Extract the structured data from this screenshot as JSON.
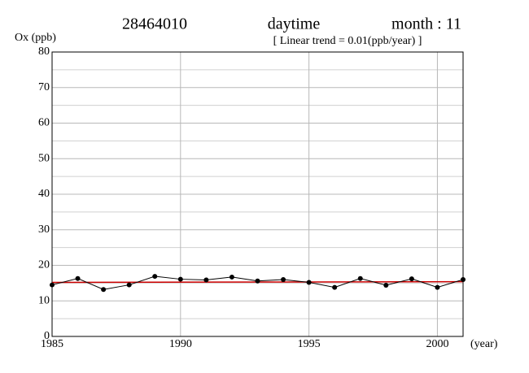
{
  "chart_data": {
    "type": "line",
    "title": "28464010",
    "title_mid": "daytime",
    "title_right": "month : 11",
    "subtitle": "[ Linear trend = 0.01(ppb/year) ]",
    "y_label": "Ox (ppb)",
    "x_label": "(year)",
    "x": [
      1985,
      1986,
      1987,
      1988,
      1989,
      1990,
      1991,
      1992,
      1993,
      1994,
      1995,
      1996,
      1997,
      1998,
      1999,
      2000,
      2001
    ],
    "series": [
      {
        "color": "#000000",
        "values": [
          14.5,
          16.3,
          13.2,
          14.5,
          16.9,
          16.1,
          15.9,
          16.7,
          15.6,
          16.0,
          15.2,
          13.8,
          16.3,
          14.4,
          16.2,
          13.8,
          16.0
        ]
      }
    ],
    "trend": {
      "color": "#cc0000",
      "x": [
        1985,
        2001
      ],
      "values": [
        15.2,
        15.4
      ]
    },
    "xlim": [
      1985,
      2001
    ],
    "xticks": [
      1985,
      1990,
      1995,
      2000
    ],
    "ylim": [
      0,
      80
    ],
    "yticks": [
      0,
      10,
      20,
      30,
      40,
      50,
      60,
      70,
      80
    ],
    "minor_yticks": [
      5,
      15,
      25,
      35,
      45,
      55,
      65,
      75
    ],
    "grid": true
  }
}
